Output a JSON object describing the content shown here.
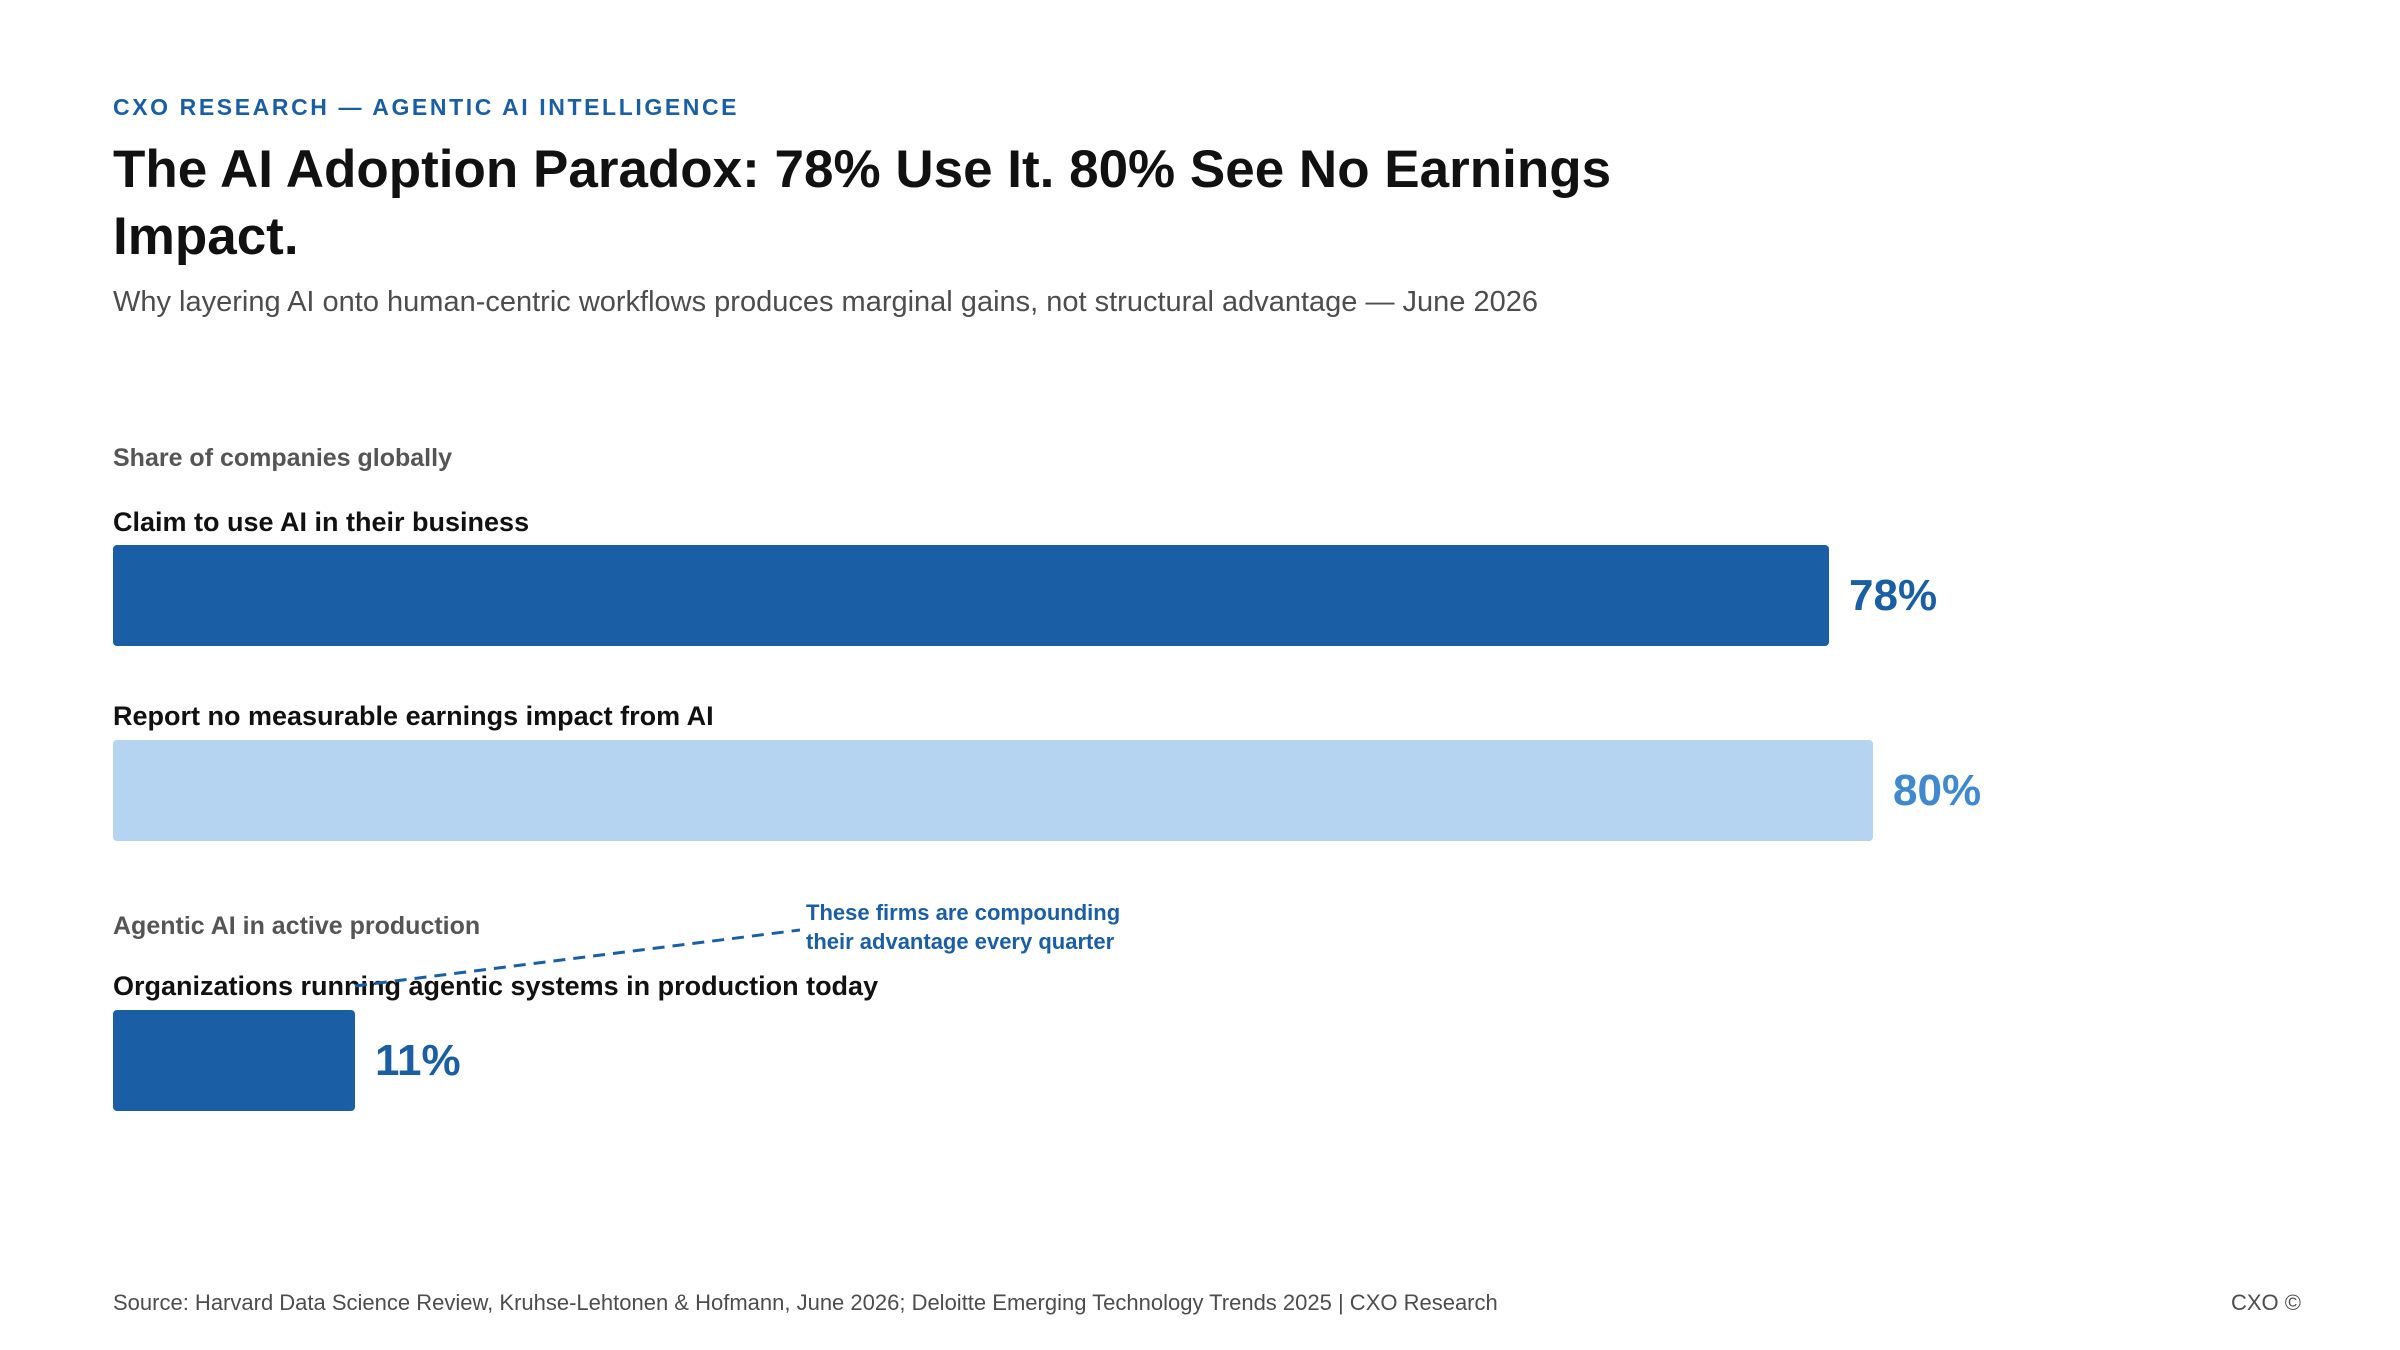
{
  "header": {
    "eyebrow": "CXO RESEARCH — AGENTIC AI INTELLIGENCE",
    "title": "The AI Adoption Paradox: 78% Use It. 80% See No Earnings Impact.",
    "subtitle": "Why layering AI onto human-centric workflows produces marginal gains, not structural advantage — June 2026"
  },
  "chart_data": {
    "type": "bar",
    "orientation": "horizontal",
    "xlim": [
      0,
      100
    ],
    "unit": "%",
    "groups": [
      {
        "label": "Share of companies globally",
        "bars": [
          {
            "label": "Claim to use AI in their business",
            "value": 78,
            "value_label": "78%",
            "color": "#1a5fa6",
            "label_color": "#1a5fa6"
          },
          {
            "label": "Report no measurable earnings impact from AI",
            "value": 80,
            "value_label": "80%",
            "color": "#b5d4f1",
            "label_color": "#3f88d2"
          }
        ]
      },
      {
        "label": "Agentic AI in active production",
        "bars": [
          {
            "label": "Organizations running agentic systems in production today",
            "value": 11,
            "value_label": "11%",
            "color": "#1a5fa6",
            "label_color": "#1a5fa6"
          }
        ]
      }
    ],
    "annotation": {
      "lines": [
        "These firms are compounding",
        "their advantage every quarter"
      ],
      "color": "#1a5fa6"
    }
  },
  "footer": {
    "source": "Source: Harvard Data Science Review, Kruhse-Lehtonen & Hofmann, June 2026; Deloitte Emerging Technology Trends 2025 | CXO Research",
    "brand": "CXO ©"
  }
}
